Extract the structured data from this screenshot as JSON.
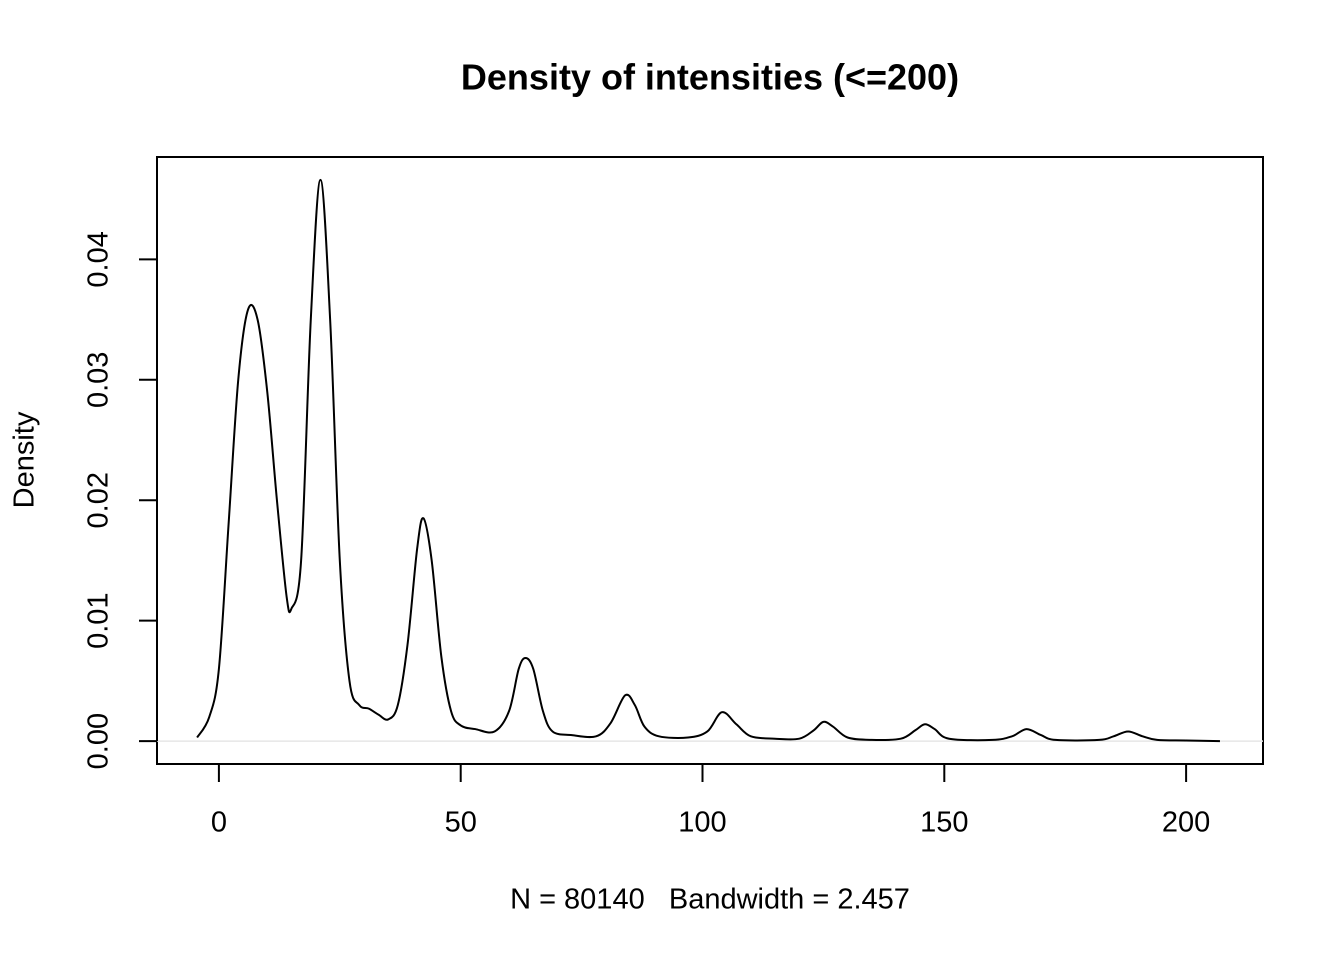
{
  "chart_data": {
    "type": "line",
    "title": "Density of intensities (<=200)",
    "xlabel": "N = 80140   Bandwidth = 2.457",
    "ylabel": "Density",
    "zero_line": true,
    "series": [
      {
        "color": "#000000",
        "x": [
          -4.5,
          -2,
          0,
          2,
          4,
          6,
          8,
          10,
          12,
          14,
          15,
          17,
          19,
          21,
          23,
          25,
          27,
          29,
          31,
          33,
          35,
          37,
          39,
          41,
          42.3,
          44,
          46,
          48,
          50,
          53,
          57,
          60,
          62,
          63.4,
          65,
          67,
          69,
          73,
          78,
          81,
          84,
          86,
          88,
          91,
          97,
          101,
          104,
          107,
          110,
          115,
          120,
          123,
          125,
          127,
          130,
          135,
          141,
          144,
          146,
          148,
          151,
          160,
          164,
          167,
          170,
          173,
          182,
          185,
          188,
          191,
          194,
          200,
          207
        ],
        "values": [
          0.0003,
          0.002,
          0.006,
          0.018,
          0.03,
          0.0358,
          0.035,
          0.029,
          0.02,
          0.012,
          0.011,
          0.015,
          0.035,
          0.0466,
          0.035,
          0.015,
          0.005,
          0.003,
          0.0027,
          0.0022,
          0.0018,
          0.003,
          0.008,
          0.016,
          0.0185,
          0.015,
          0.007,
          0.0025,
          0.0013,
          0.001,
          0.0008,
          0.0025,
          0.006,
          0.0069,
          0.006,
          0.0025,
          0.0008,
          0.0005,
          0.0004,
          0.0015,
          0.0038,
          0.003,
          0.0012,
          0.0004,
          0.0003,
          0.0008,
          0.0024,
          0.0014,
          0.0004,
          0.0002,
          0.0002,
          0.0009,
          0.0016,
          0.0012,
          0.0003,
          0.0001,
          0.0002,
          0.0009,
          0.0014,
          0.001,
          0.0002,
          0.0001,
          0.0004,
          0.001,
          0.0005,
          0.0001,
          0.0001,
          0.0004,
          0.0008,
          0.0004,
          0.0001,
          5e-05,
          0
        ]
      }
    ],
    "xlim": [
      -12.8,
      215.9
    ],
    "xticks": [
      0,
      50,
      100,
      150,
      200
    ],
    "ylim": [
      -0.0019,
      0.0485
    ],
    "yticks": [
      {
        "value": 0,
        "label": "0.00"
      },
      0.01,
      0.02,
      0.03,
      0.04
    ]
  }
}
